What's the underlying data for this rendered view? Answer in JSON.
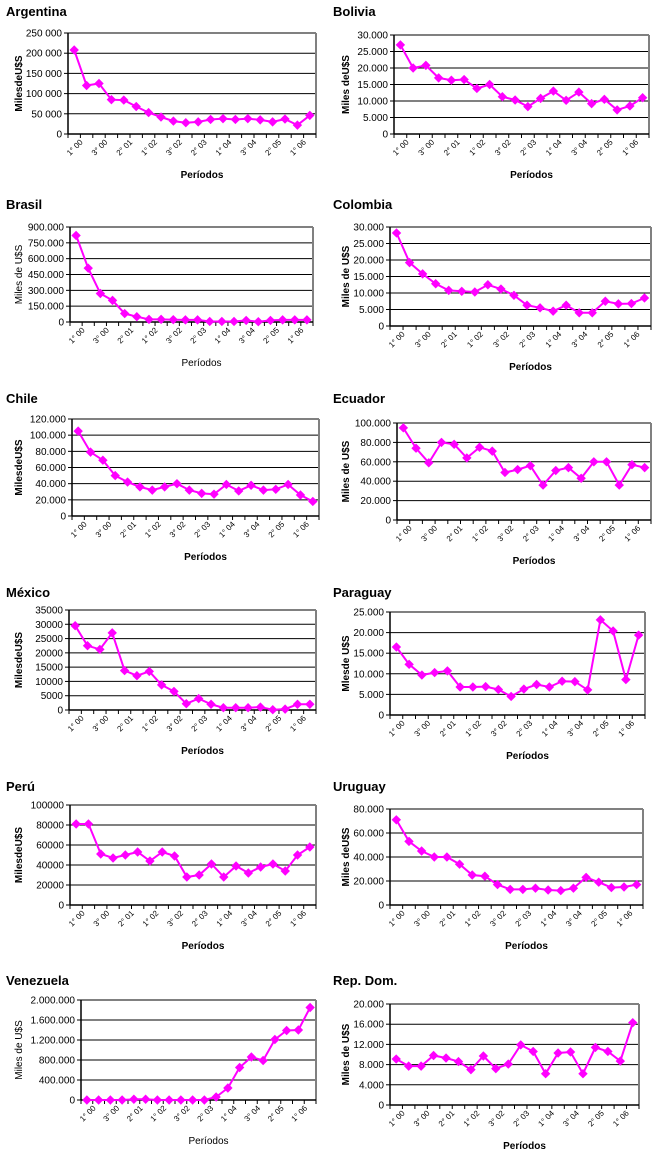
{
  "page": {
    "background": "#ffffff"
  },
  "style": {
    "series_color": "#ff00ff",
    "grid_color": "#000000",
    "frame_color": "#808080"
  },
  "chart_data": [
    {
      "id": "argentina",
      "type": "line",
      "title": "Argentina",
      "ylabel": "MilesdeU$S",
      "xlabel": "Períodos",
      "ylim": [
        0,
        250000
      ],
      "yticks": [
        0,
        50000,
        100000,
        150000,
        200000,
        250000
      ],
      "ytick_labels": [
        "0",
        "50 000",
        "100 000",
        "150 000",
        "200 000",
        "250 000"
      ],
      "x_tick_labels": [
        "1° 00",
        "3° 00",
        "2° 01",
        "1° 02",
        "3° 02",
        "2° 03",
        "1° 04",
        "3° 04",
        "2° 05",
        "1° 06"
      ],
      "grid": true,
      "legend": "none",
      "values": [
        208000,
        120000,
        125000,
        85000,
        84000,
        68000,
        53000,
        42000,
        32000,
        28000,
        30000,
        36000,
        38000,
        36000,
        38000,
        35000,
        30000,
        37000,
        22000,
        46000
      ]
    },
    {
      "id": "bolivia",
      "type": "line",
      "title": "Bolivia",
      "ylabel": "Miles deU$S",
      "xlabel": "Períodos",
      "ylim": [
        0,
        30000
      ],
      "yticks": [
        0,
        5000,
        10000,
        15000,
        20000,
        25000,
        30000
      ],
      "ytick_labels": [
        "0",
        "5.000",
        "10.000",
        "15.000",
        "20.000",
        "25.000",
        "30.000"
      ],
      "x_tick_labels": [
        "1° 00",
        "3° 00",
        "2° 01",
        "1° 02",
        "3° 02",
        "2° 03",
        "1° 04",
        "3° 04",
        "2° 05",
        "1° 06"
      ],
      "grid": true,
      "legend": "none",
      "values": [
        27000,
        20000,
        20800,
        17000,
        16300,
        16500,
        13800,
        15000,
        11300,
        10300,
        8300,
        10800,
        13000,
        10200,
        12700,
        9200,
        10500,
        7300,
        8500,
        11000
      ]
    },
    {
      "id": "brasil",
      "type": "line",
      "title": "Brasil",
      "ylabel": "Miles de U$S",
      "xlabel": "Períodos",
      "ylim": [
        0,
        900000
      ],
      "yticks": [
        0,
        150000,
        300000,
        450000,
        600000,
        750000,
        900000
      ],
      "ytick_labels": [
        "0",
        "150.000",
        "300.000",
        "450.000",
        "600.000",
        "750.000",
        "900.000"
      ],
      "x_tick_labels": [
        "1° 00",
        "3° 00",
        "2° 01",
        "1° 02",
        "3° 02",
        "2° 03",
        "1° 04",
        "3° 04",
        "2° 05",
        "1° 06"
      ],
      "grid": true,
      "legend": "none",
      "light_labels": true,
      "values": [
        820000,
        510000,
        270000,
        205000,
        80000,
        50000,
        25000,
        25000,
        22000,
        20000,
        20000,
        5000,
        5000,
        5000,
        15000,
        3000,
        15000,
        20000,
        20000,
        20000
      ]
    },
    {
      "id": "colombia",
      "type": "line",
      "title": "Colombia",
      "ylabel": "Miles de U$S",
      "xlabel": "Períodos",
      "ylim": [
        0,
        30000
      ],
      "yticks": [
        0,
        5000,
        10000,
        15000,
        20000,
        25000,
        30000
      ],
      "ytick_labels": [
        "0",
        "5.000",
        "10.000",
        "15.000",
        "20.000",
        "25.000",
        "30.000"
      ],
      "x_tick_labels": [
        "1° 00",
        "3° 00",
        "2° 01",
        "1° 02",
        "3° 02",
        "2° 03",
        "1° 04",
        "3° 04",
        "2° 05",
        "1° 06"
      ],
      "grid": true,
      "legend": "none",
      "values": [
        28200,
        19200,
        15800,
        12800,
        10800,
        10500,
        10300,
        12500,
        11200,
        9300,
        6300,
        5500,
        4500,
        6300,
        4000,
        4000,
        7500,
        6700,
        6800,
        8500
      ]
    },
    {
      "id": "chile",
      "type": "line",
      "title": "Chile",
      "ylabel": "MilesdeU$S",
      "xlabel": "Períodos",
      "ylim": [
        0,
        120000
      ],
      "yticks": [
        0,
        20000,
        40000,
        60000,
        80000,
        100000,
        120000
      ],
      "ytick_labels": [
        "0",
        "20.000",
        "40.000",
        "60.000",
        "80.000",
        "100.000",
        "120.000"
      ],
      "x_tick_labels": [
        "1° 00",
        "3° 00",
        "2° 01",
        "1° 02",
        "3° 02",
        "2° 03",
        "1° 04",
        "3° 04",
        "2° 05",
        "1° 06"
      ],
      "grid": true,
      "legend": "none",
      "values": [
        105000,
        79000,
        69000,
        50000,
        42000,
        36000,
        32000,
        36000,
        40000,
        32000,
        28000,
        27000,
        39000,
        31000,
        38000,
        32000,
        33000,
        39000,
        26000,
        18000
      ]
    },
    {
      "id": "ecuador",
      "type": "line",
      "title": "Ecuador",
      "ylabel": "Miles de U$S",
      "xlabel": "Períodos",
      "ylim": [
        0,
        100000
      ],
      "yticks": [
        0,
        20000,
        40000,
        60000,
        80000,
        100000
      ],
      "ytick_labels": [
        "0",
        "20.000",
        "40.000",
        "60.000",
        "80.000",
        "100.000"
      ],
      "x_tick_labels": [
        "1° 00",
        "3° 00",
        "2° 01",
        "1° 02",
        "3° 02",
        "2° 03",
        "1° 04",
        "3° 04",
        "2° 05",
        "1° 06"
      ],
      "grid": true,
      "legend": "none",
      "values": [
        95000,
        74000,
        59000,
        80000,
        78000,
        64000,
        75000,
        71000,
        49000,
        52000,
        56000,
        36000,
        51000,
        54000,
        43000,
        60000,
        60000,
        36000,
        57000,
        54000
      ]
    },
    {
      "id": "mexico",
      "type": "line",
      "title": "México",
      "ylabel": "MilesdeU$S",
      "xlabel": "Períodos",
      "ylim": [
        0,
        35000
      ],
      "yticks": [
        0,
        5000,
        10000,
        15000,
        20000,
        25000,
        30000,
        35000
      ],
      "ytick_labels": [
        "0",
        "5000",
        "10000",
        "15000",
        "20000",
        "25000",
        "30000",
        "35000"
      ],
      "x_tick_labels": [
        "1° 00",
        "3° 00",
        "2° 01",
        "1° 02",
        "3° 02",
        "2° 03",
        "1° 04",
        "3° 04",
        "2° 05",
        "1° 06"
      ],
      "grid": true,
      "legend": "none",
      "values": [
        29500,
        22500,
        21200,
        27000,
        13800,
        12000,
        13500,
        8800,
        6500,
        2200,
        4000,
        2000,
        800,
        800,
        800,
        1000,
        100,
        300,
        2000,
        2000
      ]
    },
    {
      "id": "paraguay",
      "type": "line",
      "title": "Paraguay",
      "ylabel": "Mlesde U$S",
      "xlabel": "Períodos",
      "ylim": [
        0,
        25000
      ],
      "yticks": [
        0,
        5000,
        10000,
        15000,
        20000,
        25000
      ],
      "ytick_labels": [
        "0",
        "5.000",
        "10.000",
        "15.000",
        "20.000",
        "25.000"
      ],
      "x_tick_labels": [
        "1° 00",
        "3° 00",
        "2° 01",
        "1° 02",
        "3° 02",
        "2° 03",
        "1° 04",
        "3° 04",
        "2° 05",
        "1° 06"
      ],
      "grid": true,
      "legend": "none",
      "values": [
        16500,
        12300,
        9700,
        10300,
        10700,
        6800,
        6800,
        6900,
        6200,
        4500,
        6300,
        7400,
        6800,
        8200,
        8100,
        6100,
        23100,
        20400,
        8600,
        19400
      ]
    },
    {
      "id": "peru",
      "type": "line",
      "title": "Perú",
      "ylabel": "MilesdeU$S",
      "xlabel": "Períodos",
      "ylim": [
        0,
        100000
      ],
      "yticks": [
        0,
        20000,
        40000,
        60000,
        80000,
        100000
      ],
      "ytick_labels": [
        "0",
        "20000",
        "40000",
        "60000",
        "80000",
        "100000"
      ],
      "x_tick_labels": [
        "1° 00",
        "3° 00",
        "2° 01",
        "1° 02",
        "3° 02",
        "2° 03",
        "1° 04",
        "3° 04",
        "2° 05",
        "1° 06"
      ],
      "grid": true,
      "legend": "none",
      "values": [
        81000,
        81000,
        51000,
        47000,
        50000,
        53000,
        44000,
        53000,
        49000,
        28000,
        30000,
        41000,
        28000,
        39000,
        32000,
        38000,
        41000,
        34000,
        50000,
        58000
      ]
    },
    {
      "id": "uruguay",
      "type": "line",
      "title": "Uruguay",
      "ylabel": "Miles deU$S",
      "xlabel": "Períodos",
      "ylim": [
        0,
        80000
      ],
      "yticks": [
        0,
        20000,
        40000,
        60000,
        80000
      ],
      "ytick_labels": [
        "0",
        "20.000",
        "40.000",
        "60.000",
        "80.000"
      ],
      "x_tick_labels": [
        "1° 00",
        "3° 00",
        "2° 01",
        "1° 02",
        "3° 02",
        "2° 03",
        "1° 04",
        "3° 04",
        "2° 05",
        "1° 06"
      ],
      "grid": true,
      "legend": "none",
      "values": [
        71000,
        53000,
        45000,
        40000,
        40000,
        34000,
        25000,
        24000,
        17000,
        13000,
        13000,
        14000,
        12500,
        12000,
        14000,
        23000,
        19000,
        14500,
        15000,
        17000
      ]
    },
    {
      "id": "venezuela",
      "type": "line",
      "title": "Venezuela",
      "ylabel": "Miles de U$S",
      "xlabel": "Períodos",
      "ylim": [
        0,
        2000000
      ],
      "yticks": [
        0,
        400000,
        800000,
        1200000,
        1600000,
        2000000
      ],
      "ytick_labels": [
        "0",
        "400.000",
        "800.000",
        "1.200.000",
        "1.600.000",
        "2.000.000"
      ],
      "x_tick_labels": [
        "1° 00",
        "3° 00",
        "2° 01",
        "1° 02",
        "3° 02",
        "2° 03",
        "1° 04",
        "3° 04",
        "2° 05",
        "1° 06"
      ],
      "grid": true,
      "legend": "none",
      "light_labels": true,
      "values": [
        0,
        0,
        0,
        0,
        15000,
        15000,
        0,
        0,
        0,
        0,
        0,
        60000,
        240000,
        650000,
        860000,
        790000,
        1210000,
        1390000,
        1400000,
        1850000
      ]
    },
    {
      "id": "rep-dom",
      "type": "line",
      "title": "Rep. Dom.",
      "ylabel": "Miles de U$S",
      "xlabel": "Períodos",
      "ylim": [
        0,
        20000
      ],
      "yticks": [
        0,
        4000,
        8000,
        12000,
        16000,
        20000
      ],
      "ytick_labels": [
        "0",
        "4.000",
        "8.000",
        "12.000",
        "16.000",
        "20.000"
      ],
      "x_tick_labels": [
        "1° 00",
        "3° 00",
        "2° 01",
        "1° 02",
        "3° 02",
        "2° 03",
        "1° 04",
        "3° 04",
        "2° 05",
        "1° 06"
      ],
      "grid": true,
      "legend": "none",
      "values": [
        9100,
        7700,
        7700,
        9800,
        9300,
        8600,
        7000,
        9700,
        7200,
        8100,
        11900,
        10600,
        6200,
        10300,
        10500,
        6200,
        11400,
        10600,
        8700,
        16300
      ]
    }
  ]
}
